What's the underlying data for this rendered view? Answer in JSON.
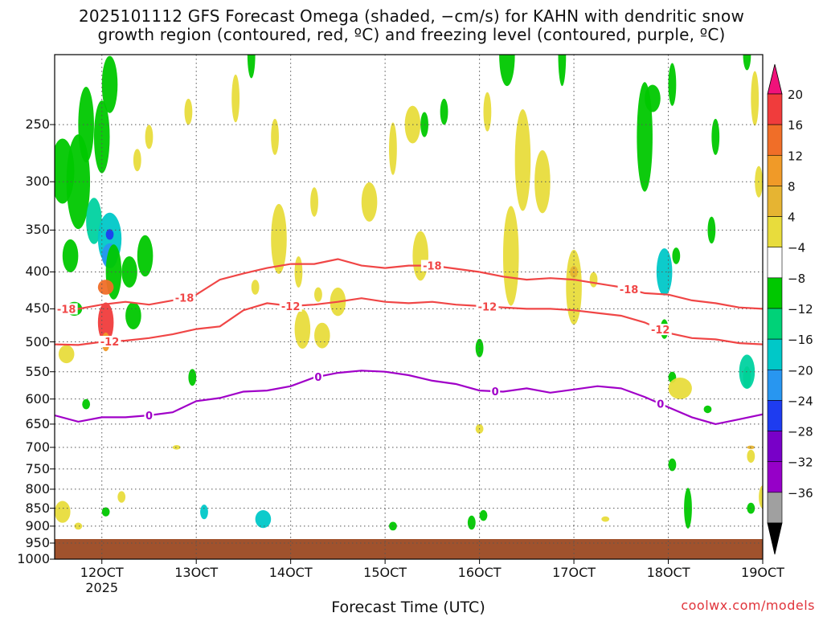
{
  "title_line1": "2025101112 GFS Forecast Omega (shaded, −cm/s) for KAHN with dendritic snow",
  "title_line2": "growth region (contoured, red, ºC) and freezing level (contoured, purple, ºC)",
  "credit": "coolwx.com/models",
  "chart_data": {
    "type": "heatmap",
    "title": "2025101112 GFS Forecast Omega (shaded, −cm/s) for KAHN with dendritic snow growth region (contoured, red, ºC) and freezing level (contoured, purple, ºC)",
    "xlabel": "Forecast Time (UTC)",
    "ylabel": "",
    "x_ticks": [
      "12OCT",
      "13OCT",
      "14OCT",
      "15OCT",
      "16OCT",
      "17OCT",
      "18OCT",
      "19OCT"
    ],
    "x_tick_hours": [
      12,
      36,
      60,
      84,
      108,
      132,
      156,
      180
    ],
    "x_sub_label": "2025",
    "xlim_hours": [
      0,
      180
    ],
    "y_ticks": [
      250,
      300,
      350,
      400,
      450,
      500,
      550,
      600,
      650,
      700,
      750,
      800,
      850,
      900,
      950,
      1000
    ],
    "ylim_hpa": [
      200,
      1000
    ],
    "y_scale": "log",
    "grid": true,
    "colorbar": {
      "labels": [
        "20",
        "16",
        "12",
        "8",
        "4",
        "−4",
        "−8",
        "−12",
        "−16",
        "−20",
        "−24",
        "−28",
        "−32",
        "−36"
      ],
      "colors": [
        "#f0127a",
        "#f03c3c",
        "#f06e28",
        "#f09a28",
        "#e6b432",
        "#e8dc3c",
        "#ffffff",
        "#00c800",
        "#00d278",
        "#00c8c8",
        "#2896f0",
        "#1e3cf0",
        "#7800c8",
        "#9600c8",
        "#a0a0a0",
        "#000000"
      ]
    },
    "contours": [
      {
        "name": "-18",
        "color": "#f04646",
        "label_at_hours": [
          3,
          33,
          96,
          146
        ],
        "pressure": [
          [
            0,
            450
          ],
          [
            6,
            450
          ],
          [
            12,
            444
          ],
          [
            18,
            440
          ],
          [
            24,
            444
          ],
          [
            30,
            438
          ],
          [
            36,
            430
          ],
          [
            42,
            410
          ],
          [
            48,
            402
          ],
          [
            54,
            395
          ],
          [
            60,
            390
          ],
          [
            66,
            390
          ],
          [
            72,
            384
          ],
          [
            78,
            392
          ],
          [
            84,
            395
          ],
          [
            90,
            392
          ],
          [
            96,
            392
          ],
          [
            102,
            396
          ],
          [
            108,
            400
          ],
          [
            114,
            406
          ],
          [
            120,
            410
          ],
          [
            126,
            408
          ],
          [
            132,
            410
          ],
          [
            138,
            415
          ],
          [
            144,
            420
          ],
          [
            150,
            428
          ],
          [
            156,
            430
          ],
          [
            162,
            438
          ],
          [
            168,
            442
          ],
          [
            174,
            448
          ],
          [
            180,
            450
          ]
        ]
      },
      {
        "name": "-12",
        "color": "#f04646",
        "label_at_hours": [
          14,
          60,
          110,
          154
        ],
        "pressure": [
          [
            0,
            504
          ],
          [
            6,
            505
          ],
          [
            12,
            500
          ],
          [
            18,
            498
          ],
          [
            24,
            494
          ],
          [
            30,
            488
          ],
          [
            36,
            480
          ],
          [
            42,
            476
          ],
          [
            48,
            452
          ],
          [
            54,
            442
          ],
          [
            60,
            446
          ],
          [
            66,
            444
          ],
          [
            72,
            440
          ],
          [
            78,
            435
          ],
          [
            84,
            440
          ],
          [
            90,
            442
          ],
          [
            96,
            440
          ],
          [
            102,
            444
          ],
          [
            108,
            446
          ],
          [
            114,
            448
          ],
          [
            120,
            450
          ],
          [
            126,
            450
          ],
          [
            132,
            452
          ],
          [
            138,
            456
          ],
          [
            144,
            460
          ],
          [
            150,
            470
          ],
          [
            156,
            486
          ],
          [
            162,
            494
          ],
          [
            168,
            496
          ],
          [
            174,
            502
          ],
          [
            180,
            504
          ]
        ]
      },
      {
        "name": "0",
        "color": "#a000c8",
        "label_at_hours": [
          24,
          67,
          112,
          154
        ],
        "pressure": [
          [
            0,
            632
          ],
          [
            6,
            645
          ],
          [
            12,
            636
          ],
          [
            18,
            636
          ],
          [
            24,
            632
          ],
          [
            30,
            626
          ],
          [
            36,
            604
          ],
          [
            42,
            598
          ],
          [
            48,
            586
          ],
          [
            54,
            584
          ],
          [
            60,
            576
          ],
          [
            66,
            560
          ],
          [
            72,
            552
          ],
          [
            78,
            548
          ],
          [
            84,
            550
          ],
          [
            90,
            556
          ],
          [
            96,
            566
          ],
          [
            102,
            572
          ],
          [
            108,
            584
          ],
          [
            114,
            586
          ],
          [
            120,
            580
          ],
          [
            126,
            588
          ],
          [
            132,
            582
          ],
          [
            138,
            576
          ],
          [
            144,
            580
          ],
          [
            150,
            596
          ],
          [
            156,
            616
          ],
          [
            162,
            636
          ],
          [
            168,
            650
          ],
          [
            174,
            640
          ],
          [
            180,
            630
          ]
        ]
      }
    ]
  }
}
